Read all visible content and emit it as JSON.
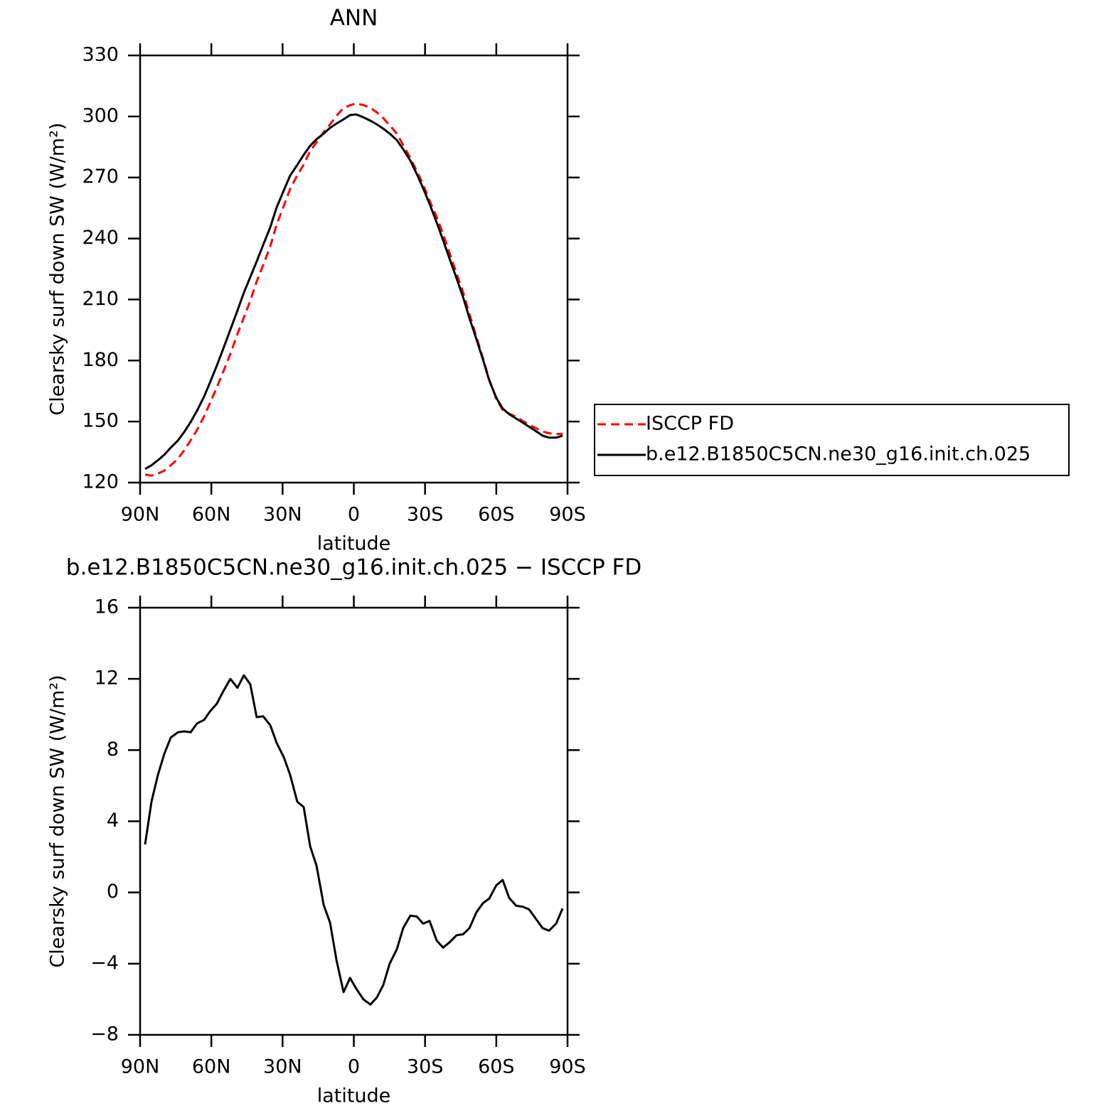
{
  "chart_data": [
    {
      "type": "line",
      "title": "ANN",
      "xlabel": "latitude",
      "ylabel": "Clearsky surf down SW (W/m²)",
      "x": [
        87.9,
        85.2,
        82.5,
        79.8,
        77.1,
        74.1,
        71.4,
        68.7,
        66.0,
        63.0,
        60.4,
        57.7,
        55.0,
        52.0,
        49.0,
        46.3,
        43.6,
        40.9,
        38.2,
        35.2,
        32.5,
        29.5,
        26.8,
        23.8,
        21.1,
        18.4,
        15.7,
        12.7,
        10.0,
        7.3,
        4.3,
        1.6,
        -1.0,
        -4.0,
        -7.0,
        -9.7,
        -12.4,
        -15.1,
        -18.1,
        -20.8,
        -23.8,
        -26.5,
        -29.2,
        -31.9,
        -34.9,
        -37.6,
        -40.3,
        -43.3,
        -46.0,
        -48.7,
        -51.7,
        -54.4,
        -57.0,
        -60.0,
        -62.7,
        -65.4,
        -68.4,
        -71.1,
        -73.8,
        -76.8,
        -79.5,
        -82.2,
        -85.2,
        -87.9
      ],
      "series": [
        {
          "name": "ISCCP FD",
          "color": "#ff0000",
          "linestyle": "dashed",
          "values": [
            124.0,
            123.4,
            124.4,
            125.9,
            128.5,
            131.7,
            135.9,
            140.8,
            145.9,
            152.7,
            159.5,
            166.8,
            174.5,
            183.2,
            193.1,
            201.2,
            209.3,
            218.9,
            226.9,
            236.1,
            246.9,
            256.0,
            264.4,
            271.1,
            276.3,
            283.0,
            287.3,
            292.3,
            296.1,
            300.3,
            304.2,
            305.5,
            306.4,
            305.6,
            304.2,
            302.0,
            299.2,
            295.6,
            291.6,
            285.9,
            279.6,
            273.1,
            266.5,
            258.6,
            250.6,
            242.3,
            232.9,
            222.7,
            213.6,
            202.8,
            191.4,
            181.1,
            170.8,
            161.3,
            155.7,
            153.9,
            152.3,
            150.3,
            148.5,
            146.7,
            145.1,
            144.3,
            143.9,
            144.0
          ]
        },
        {
          "name": "b.e12.B1850C5CN.ne30_g16.init.ch.025",
          "color": "#000000",
          "linestyle": "solid",
          "values": [
            126.7,
            128.5,
            131,
            133.7,
            137.2,
            140.7,
            144.9,
            149.8,
            155.4,
            162.4,
            169.7,
            177.4,
            185.8,
            195.2,
            204.6,
            213.4,
            221.0,
            228.7,
            236.8,
            245.5,
            255.3,
            263.6,
            271.0,
            276.2,
            281.1,
            285.6,
            288.8,
            291.6,
            294.4,
            296.5,
            298.6,
            300.7,
            301.0,
            299.6,
            297.9,
            296.1,
            294.0,
            291.6,
            288.4,
            283.9,
            278.3,
            271.7,
            264.7,
            257.0,
            247.9,
            239.2,
            230.1,
            220.3,
            211.2,
            200.8,
            190.3,
            180.5,
            170.4,
            161.7,
            156.4,
            153.6,
            151.5,
            149.5,
            147.5,
            145.2,
            143.1,
            142.1,
            142.1,
            143.1
          ]
        }
      ],
      "xlim": [
        90,
        -90
      ],
      "xticks": [
        {
          "value": 90,
          "label": "90N"
        },
        {
          "value": 60,
          "label": "60N"
        },
        {
          "value": 30,
          "label": "30N"
        },
        0,
        {
          "value": -30,
          "label": "30S"
        },
        {
          "value": -60,
          "label": "60S"
        },
        {
          "value": -90,
          "label": "90S"
        }
      ],
      "ylim": [
        120,
        330
      ],
      "yticks": [
        120,
        150,
        180,
        210,
        240,
        270,
        300,
        330
      ],
      "grid": false,
      "legend": "right"
    },
    {
      "type": "line",
      "title": "b.e12.B1850C5CN.ne30_g16.init.ch.025 − ISCCP FD",
      "xlabel": "latitude",
      "ylabel": "Clearsky surf down SW (W/m²)",
      "x": [
        87.9,
        85.2,
        82.5,
        79.8,
        77.1,
        74.1,
        71.4,
        68.7,
        66.0,
        63.0,
        60.4,
        57.7,
        55.0,
        52.0,
        49.0,
        46.3,
        43.6,
        40.9,
        38.2,
        35.2,
        32.5,
        29.5,
        26.8,
        23.8,
        21.1,
        18.4,
        15.7,
        12.7,
        10.0,
        7.3,
        4.3,
        1.6,
        -1.0,
        -4.0,
        -7.0,
        -9.7,
        -12.4,
        -15.1,
        -18.1,
        -20.8,
        -23.8,
        -26.5,
        -29.2,
        -31.9,
        -34.9,
        -37.6,
        -40.3,
        -43.3,
        -46.0,
        -48.7,
        -51.7,
        -54.4,
        -57.0,
        -60.0,
        -62.7,
        -65.4,
        -68.4,
        -71.1,
        -73.8,
        -76.8,
        -79.5,
        -82.2,
        -85.2,
        -87.9
      ],
      "values": [
        2.7,
        5.1,
        6.6,
        7.8,
        8.7,
        9.0,
        9.05,
        9.0,
        9.5,
        9.7,
        10.2,
        10.6,
        11.3,
        12.0,
        11.5,
        12.2,
        11.7,
        9.85,
        9.9,
        9.4,
        8.4,
        7.6,
        6.6,
        5.1,
        4.8,
        2.6,
        1.5,
        -0.7,
        -1.7,
        -3.8,
        -5.6,
        -4.8,
        -5.4,
        -6.0,
        -6.3,
        -5.9,
        -5.2,
        -4.0,
        -3.2,
        -2.0,
        -1.3,
        -1.35,
        -1.75,
        -1.6,
        -2.7,
        -3.1,
        -2.8,
        -2.4,
        -2.35,
        -2.0,
        -1.1,
        -0.6,
        -0.35,
        0.4,
        0.7,
        -0.3,
        -0.75,
        -0.8,
        -0.95,
        -1.5,
        -2.0,
        -2.15,
        -1.75,
        -0.9
      ],
      "color": "#000000",
      "xlim": [
        90,
        -90
      ],
      "xticks": [
        {
          "value": 90,
          "label": "90N"
        },
        {
          "value": 60,
          "label": "60N"
        },
        {
          "value": 30,
          "label": "30N"
        },
        0,
        {
          "value": -30,
          "label": "30S"
        },
        {
          "value": -60,
          "label": "60S"
        },
        {
          "value": -90,
          "label": "90S"
        }
      ],
      "ylim": [
        -8,
        16
      ],
      "yticks": [
        {
          "value": -8,
          "label": "−8"
        },
        {
          "value": -4,
          "label": "−4"
        },
        0,
        4,
        8,
        12,
        16
      ],
      "grid": false
    }
  ]
}
